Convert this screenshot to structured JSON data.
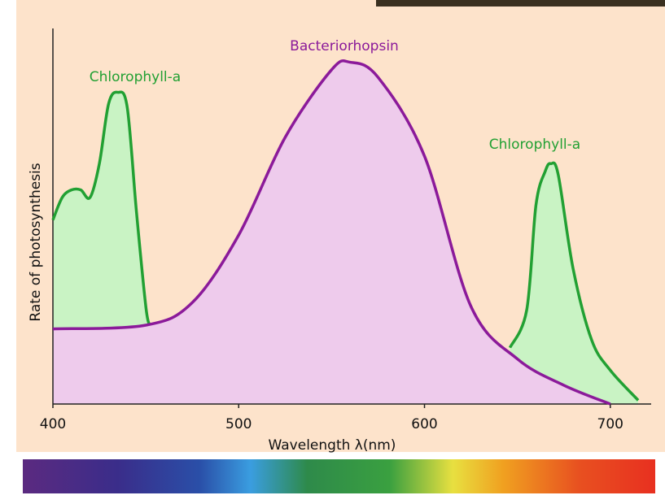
{
  "chart_data": {
    "type": "area",
    "x_label": "Wavelength λ(nm)",
    "y_label": "Rate of photosynthesis",
    "xlim": [
      400,
      722
    ],
    "ylim": [
      0,
      100
    ],
    "xticks": [
      400,
      500,
      600,
      700
    ],
    "series": [
      {
        "name": "Chlorophyll-a",
        "color": "#22a033",
        "fill": "#c9f3c4",
        "x": [
          400,
          405,
          410,
          415,
          420,
          425,
          430,
          435,
          440,
          445,
          450,
          452
        ],
        "values": [
          49,
          55,
          57,
          57,
          55,
          64,
          80,
          83,
          79,
          51,
          26,
          21
        ]
      },
      {
        "name": "Bacteriorhopsin",
        "color": "#8b1a9a",
        "fill": "#eecbec",
        "x": [
          400,
          450,
          475,
          500,
          525,
          550,
          560,
          575,
          600,
          625,
          650,
          675,
          700
        ],
        "values": [
          20,
          21,
          27,
          45,
          71,
          89,
          91,
          87,
          66,
          26,
          12,
          5,
          0
        ]
      },
      {
        "name": "Chlorophyll-a",
        "color": "#22a033",
        "fill": "#c9f3c4",
        "x": [
          646,
          655,
          660,
          665,
          668,
          672,
          680,
          690,
          700,
          715
        ],
        "values": [
          15,
          25,
          53,
          62,
          64,
          61,
          36,
          17,
          9,
          1
        ]
      }
    ]
  }
}
